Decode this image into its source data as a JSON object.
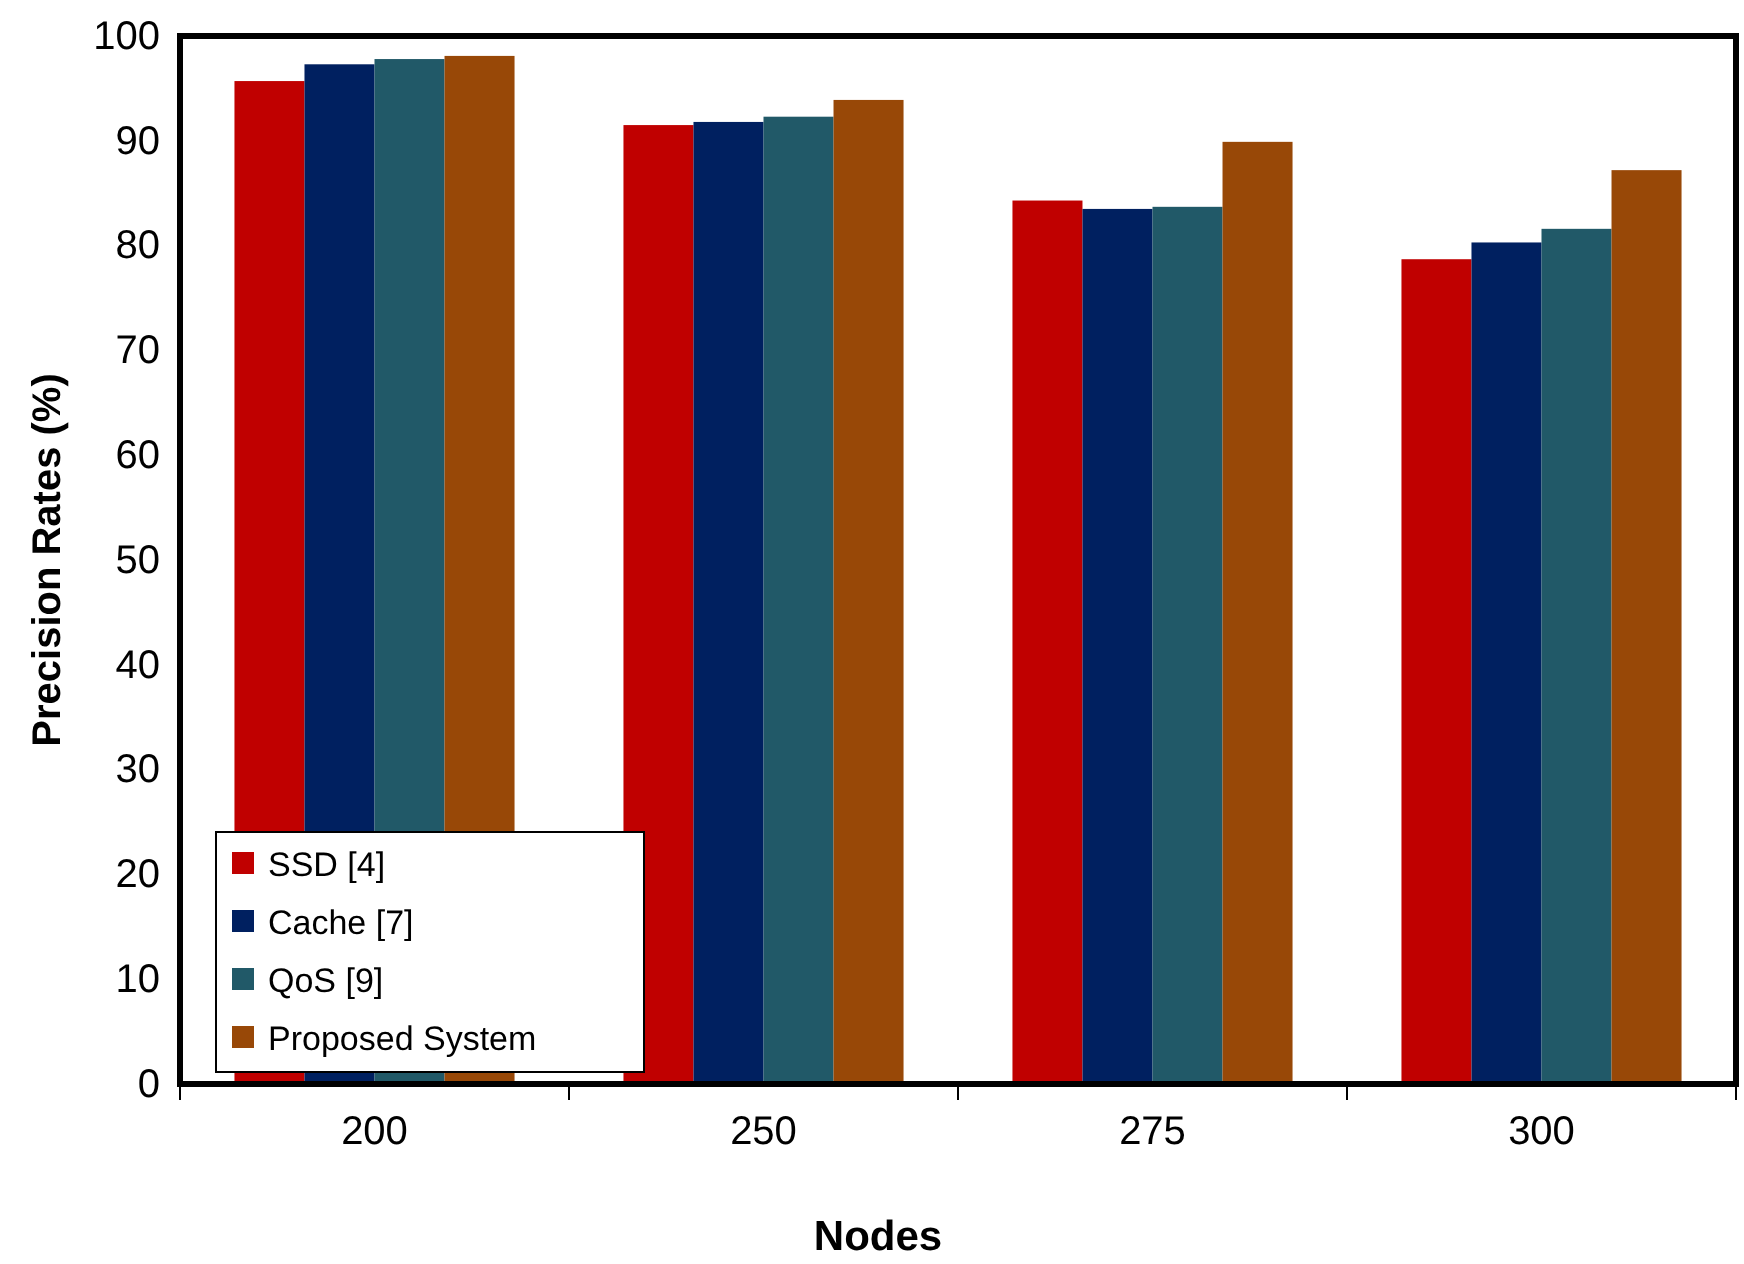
{
  "chart_data": {
    "type": "bar",
    "xlabel": "Nodes",
    "ylabel": "Precision Rates (%)",
    "categories": [
      "200",
      "250",
      "275",
      "300"
    ],
    "series": [
      {
        "name": "SSD [4]",
        "color": "#c00000",
        "values": [
          95.7,
          91.5,
          84.3,
          78.7
        ]
      },
      {
        "name": "Cache [7]",
        "color": "#002060",
        "values": [
          97.3,
          91.8,
          83.5,
          80.3
        ]
      },
      {
        "name": "QoS [9]",
        "color": "#215968",
        "values": [
          97.8,
          92.3,
          83.7,
          81.6
        ]
      },
      {
        "name": "Proposed System",
        "color": "#984807",
        "values": [
          98.1,
          93.9,
          89.9,
          87.2
        ]
      }
    ],
    "ylim": [
      0,
      100
    ],
    "yticks": [
      0,
      10,
      20,
      30,
      40,
      50,
      60,
      70,
      80,
      90,
      100
    ],
    "grid": false,
    "legend": "bottom left"
  }
}
